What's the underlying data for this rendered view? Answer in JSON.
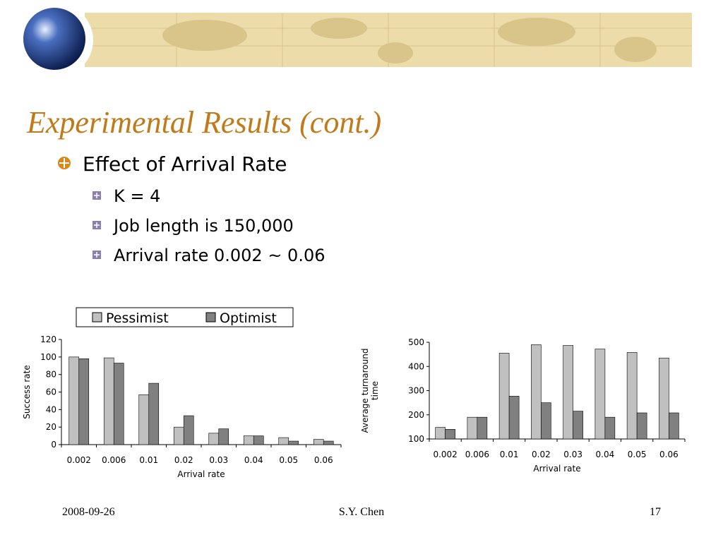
{
  "title": "Experimental Results (cont.)",
  "bullet": "Effect of Arrival Rate",
  "sub_bullets": [
    "K = 4",
    "Job length is 150,000",
    "Arrival rate  0.002 ~ 0.06"
  ],
  "footer": {
    "date": "2008-09-26",
    "author": "S.Y. Chen",
    "page": "17"
  },
  "chart_data": [
    {
      "type": "bar",
      "y_label": [
        "Success rate"
      ],
      "x_label": "Arrival rate",
      "categories": [
        "0.002",
        "0.006",
        "0.01",
        "0.02",
        "0.03",
        "0.04",
        "0.05",
        "0.06"
      ],
      "series": [
        {
          "name": "Pessimist",
          "color": "#c0c0c0",
          "values": [
            100,
            99,
            57,
            20,
            13,
            10,
            8,
            6
          ]
        },
        {
          "name": "Optimist",
          "color": "#808080",
          "values": [
            98,
            93,
            70,
            33,
            18,
            10,
            4,
            4
          ]
        }
      ],
      "ylim": [
        0,
        120
      ],
      "yticks": [
        0,
        20,
        40,
        60,
        80,
        100,
        120
      ],
      "legend": "top"
    },
    {
      "type": "bar",
      "y_label": [
        "Average turnaround",
        "time"
      ],
      "x_label": "Arrival rate",
      "categories": [
        "0.002",
        "0.006",
        "0.01",
        "0.02",
        "0.03",
        "0.04",
        "0.05",
        "0.06"
      ],
      "series": [
        {
          "color": "#c0c0c0",
          "values": [
            148,
            190,
            455,
            490,
            487,
            472,
            458,
            435
          ]
        },
        {
          "color": "#808080",
          "values": [
            140,
            190,
            277,
            250,
            215,
            190,
            208,
            208
          ]
        }
      ],
      "ylim": [
        100,
        500
      ],
      "yticks": [
        100,
        200,
        300,
        400,
        500
      ]
    }
  ]
}
